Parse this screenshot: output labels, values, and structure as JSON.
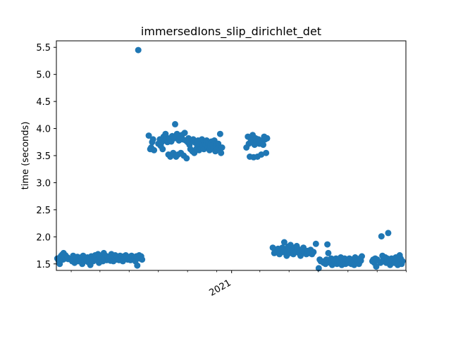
{
  "chart_data": {
    "type": "scatter",
    "title": "immersedIons_slip_dirichlet_det",
    "xlabel": "",
    "ylabel": "time (seconds)",
    "x_axis_kind": "date",
    "xlim": [
      "2020-01-01",
      "2021-12-31"
    ],
    "ylim": [
      1.38,
      5.62
    ],
    "yticks": [
      1.5,
      2.0,
      2.5,
      3.0,
      3.5,
      4.0,
      4.5,
      5.0,
      5.5
    ],
    "ytick_labels": [
      "1.5",
      "2.0",
      "2.5",
      "3.0",
      "3.5",
      "4.0",
      "4.5",
      "5.0",
      "5.5"
    ],
    "xtick_major": [
      {
        "date": "2021-01-01",
        "label": "2021"
      }
    ],
    "xtick_minor": [
      "2020-02-01",
      "2020-04-01",
      "2020-06-01",
      "2020-08-01",
      "2020-10-01",
      "2020-12-01",
      "2021-03-01",
      "2021-05-01",
      "2021-07-01",
      "2021-09-01",
      "2021-11-01",
      "2022-01-01"
    ],
    "grid": false,
    "legend": "none",
    "marker_color": "#1f77b4",
    "series": [
      {
        "x": [
          "2020-01-03",
          "2020-01-06",
          "2020-01-08",
          "2020-01-09",
          "2020-01-11",
          "2020-01-13",
          "2020-01-15",
          "2020-01-16",
          "2020-01-18",
          "2020-01-20",
          "2020-01-22",
          "2020-01-24",
          "2020-01-26",
          "2020-02-01",
          "2020-02-03",
          "2020-02-05",
          "2020-02-06",
          "2020-02-08",
          "2020-02-10",
          "2020-02-12",
          "2020-02-14",
          "2020-02-16",
          "2020-02-18",
          "2020-02-20",
          "2020-02-22",
          "2020-02-24",
          "2020-02-26",
          "2020-02-28",
          "2020-03-02",
          "2020-03-04",
          "2020-03-06",
          "2020-03-08",
          "2020-03-10",
          "2020-03-12",
          "2020-03-14",
          "2020-03-16",
          "2020-03-18",
          "2020-03-20",
          "2020-03-22",
          "2020-03-24",
          "2020-03-26",
          "2020-03-28",
          "2020-03-30",
          "2020-04-01",
          "2020-04-03",
          "2020-04-05",
          "2020-04-07",
          "2020-04-09",
          "2020-04-11",
          "2020-04-13",
          "2020-04-15",
          "2020-04-17",
          "2020-04-19",
          "2020-04-21",
          "2020-04-23",
          "2020-04-25",
          "2020-04-27",
          "2020-04-29",
          "2020-05-01",
          "2020-05-03",
          "2020-05-05",
          "2020-05-07",
          "2020-05-09",
          "2020-05-11",
          "2020-05-13",
          "2020-05-15",
          "2020-05-17",
          "2020-05-19",
          "2020-05-21",
          "2020-05-23",
          "2020-05-25",
          "2020-05-27",
          "2020-05-29",
          "2020-05-31",
          "2020-06-02",
          "2020-06-04",
          "2020-06-06",
          "2020-06-08",
          "2020-06-10",
          "2020-06-12",
          "2020-06-14",
          "2020-06-16",
          "2020-06-18",
          "2020-06-20",
          "2020-06-22",
          "2020-06-24",
          "2020-06-26",
          "2020-06-28"
        ],
        "y": [
          1.6,
          1.55,
          1.5,
          1.62,
          1.65,
          1.67,
          1.58,
          1.7,
          1.63,
          1.66,
          1.6,
          1.62,
          1.59,
          1.58,
          1.55,
          1.65,
          1.6,
          1.52,
          1.62,
          1.57,
          1.63,
          1.55,
          1.6,
          1.58,
          1.62,
          1.5,
          1.65,
          1.55,
          1.6,
          1.57,
          1.62,
          1.53,
          1.59,
          1.48,
          1.64,
          1.58,
          1.55,
          1.62,
          1.66,
          1.6,
          1.57,
          1.68,
          1.52,
          1.63,
          1.58,
          1.61,
          1.55,
          1.7,
          1.6,
          1.65,
          1.57,
          1.62,
          1.59,
          1.64,
          1.56,
          1.68,
          1.61,
          1.55,
          1.63,
          1.66,
          1.58,
          1.62,
          1.6,
          1.57,
          1.65,
          1.59,
          1.62,
          1.55,
          1.64,
          1.6,
          1.66,
          1.62,
          1.58,
          1.6,
          1.63,
          1.57,
          1.65,
          1.6,
          1.58,
          1.62,
          1.55,
          1.64,
          1.47,
          1.62,
          1.66,
          1.6,
          1.64,
          1.58
        ]
      },
      {
        "x": [
          "2020-06-20"
        ],
        "y": [
          5.45
        ]
      },
      {
        "x": [
          "2020-07-12",
          "2020-07-15",
          "2020-07-17",
          "2020-07-19",
          "2020-07-21",
          "2020-07-23",
          "2020-08-01",
          "2020-08-04",
          "2020-08-06",
          "2020-08-08",
          "2020-08-10",
          "2020-08-12",
          "2020-08-14",
          "2020-08-16",
          "2020-08-18",
          "2020-08-20",
          "2020-08-22",
          "2020-08-24",
          "2020-08-26",
          "2020-08-28",
          "2020-08-30",
          "2020-09-01",
          "2020-09-03",
          "2020-09-05",
          "2020-09-07",
          "2020-09-09",
          "2020-09-11",
          "2020-09-13",
          "2020-09-15",
          "2020-09-17",
          "2020-09-19",
          "2020-09-21",
          "2020-09-23",
          "2020-09-25",
          "2020-09-27",
          "2020-09-29",
          "2020-10-01",
          "2020-10-03",
          "2020-10-05",
          "2020-10-07",
          "2020-10-09",
          "2020-10-11",
          "2020-10-13",
          "2020-10-15",
          "2020-10-17",
          "2020-10-19",
          "2020-10-21",
          "2020-10-23",
          "2020-10-25",
          "2020-10-27",
          "2020-10-29",
          "2020-10-31",
          "2020-11-02",
          "2020-11-04",
          "2020-11-06",
          "2020-11-08",
          "2020-11-10",
          "2020-11-12",
          "2020-11-14",
          "2020-11-16",
          "2020-11-18",
          "2020-11-20",
          "2020-11-22",
          "2020-11-24",
          "2020-11-26",
          "2020-11-28",
          "2020-11-30",
          "2020-12-02",
          "2020-12-04",
          "2020-12-06"
        ],
        "y": [
          3.87,
          3.62,
          3.65,
          3.75,
          3.8,
          3.6,
          3.72,
          3.8,
          3.68,
          3.75,
          3.62,
          3.85,
          3.78,
          3.9,
          3.8,
          3.75,
          3.52,
          3.82,
          3.48,
          3.76,
          3.86,
          3.55,
          3.82,
          4.08,
          3.48,
          3.9,
          3.52,
          3.78,
          3.84,
          3.55,
          3.88,
          3.8,
          3.5,
          3.92,
          3.78,
          3.45,
          3.75,
          3.82,
          3.7,
          3.62,
          3.78,
          3.58,
          3.8,
          3.55,
          3.74,
          3.62,
          3.7,
          3.78,
          3.6,
          3.72,
          3.65,
          3.8,
          3.68,
          3.62,
          3.75,
          3.7,
          3.78,
          3.65,
          3.72,
          3.6,
          3.68,
          3.76,
          3.7,
          3.64,
          3.78,
          3.58,
          3.7,
          3.62,
          3.72,
          3.65
        ]
      },
      {
        "x": [
          "2020-12-08",
          "2020-12-10",
          "2020-12-12"
        ],
        "y": [
          3.9,
          3.55,
          3.65
        ]
      },
      {
        "x": [
          "2021-02-01",
          "2021-02-04",
          "2021-02-06",
          "2021-02-08",
          "2021-02-10",
          "2021-02-12",
          "2021-02-14",
          "2021-02-16",
          "2021-02-18",
          "2021-02-20",
          "2021-02-22",
          "2021-02-24",
          "2021-02-26",
          "2021-02-28",
          "2021-03-02",
          "2021-03-04",
          "2021-03-06",
          "2021-03-08",
          "2021-03-10",
          "2021-03-12",
          "2021-03-14",
          "2021-03-16"
        ],
        "y": [
          3.65,
          3.85,
          3.72,
          3.48,
          3.8,
          3.75,
          3.88,
          3.47,
          3.7,
          3.82,
          3.76,
          3.48,
          3.8,
          3.72,
          3.78,
          3.52,
          3.75,
          3.7,
          3.85,
          3.8,
          3.55,
          3.82
        ]
      },
      {
        "x": [
          "2021-03-28",
          "2021-03-31",
          "2021-04-02",
          "2021-04-05",
          "2021-04-08",
          "2021-04-11",
          "2021-04-14",
          "2021-04-17",
          "2021-04-19",
          "2021-04-21",
          "2021-04-24",
          "2021-04-26",
          "2021-04-29",
          "2021-05-02",
          "2021-05-04",
          "2021-05-07",
          "2021-05-10",
          "2021-05-12",
          "2021-05-15",
          "2021-05-17",
          "2021-05-19",
          "2021-05-22",
          "2021-05-25",
          "2021-05-28",
          "2021-05-31",
          "2021-06-03",
          "2021-06-06",
          "2021-06-09",
          "2021-06-12",
          "2021-06-15",
          "2021-06-18",
          "2021-06-21",
          "2021-06-26"
        ],
        "y": [
          1.8,
          1.7,
          1.76,
          1.72,
          1.78,
          1.68,
          1.75,
          1.8,
          1.72,
          1.9,
          1.76,
          1.65,
          1.82,
          1.7,
          1.85,
          1.75,
          1.68,
          1.8,
          1.72,
          1.83,
          1.78,
          1.7,
          1.65,
          1.76,
          1.8,
          1.72,
          1.68,
          1.74,
          1.7,
          1.76,
          1.68,
          1.72,
          1.87
        ]
      },
      {
        "x": [
          "2021-07-02",
          "2021-07-04",
          "2021-07-06",
          "2021-07-12",
          "2021-07-14",
          "2021-07-16",
          "2021-07-18",
          "2021-07-20",
          "2021-07-22",
          "2021-07-24",
          "2021-07-26",
          "2021-07-28",
          "2021-07-30",
          "2021-08-01",
          "2021-08-03",
          "2021-08-05",
          "2021-08-07",
          "2021-08-09",
          "2021-08-11",
          "2021-08-13",
          "2021-08-15",
          "2021-08-17",
          "2021-08-19",
          "2021-08-21",
          "2021-08-23",
          "2021-08-25",
          "2021-08-27",
          "2021-08-29",
          "2021-08-31",
          "2021-09-02",
          "2021-09-04",
          "2021-09-06",
          "2021-09-08",
          "2021-09-10",
          "2021-09-12",
          "2021-09-14",
          "2021-09-16",
          "2021-09-18",
          "2021-09-20",
          "2021-09-22",
          "2021-09-24",
          "2021-09-26",
          "2021-09-28",
          "2021-09-30"
        ],
        "y": [
          1.42,
          1.58,
          1.55,
          1.52,
          1.55,
          1.5,
          1.58,
          1.86,
          1.7,
          1.55,
          1.52,
          1.6,
          1.48,
          1.55,
          1.57,
          1.52,
          1.6,
          1.5,
          1.55,
          1.58,
          1.52,
          1.62,
          1.48,
          1.57,
          1.54,
          1.6,
          1.5,
          1.58,
          1.55,
          1.52,
          1.6,
          1.56,
          1.5,
          1.58,
          1.54,
          1.48,
          1.62,
          1.52,
          1.57,
          1.55,
          1.5,
          1.6,
          1.56,
          1.64
        ]
      },
      {
        "x": [
          "2021-10-22",
          "2021-10-24",
          "2021-10-26",
          "2021-10-28",
          "2021-10-30",
          "2021-11-01",
          "2021-11-08",
          "2021-11-10",
          "2021-11-12",
          "2021-11-14",
          "2021-11-16",
          "2021-11-18",
          "2021-11-20",
          "2021-11-22",
          "2021-11-24",
          "2021-11-26",
          "2021-11-28",
          "2021-12-01",
          "2021-12-04",
          "2021-12-07",
          "2021-12-10",
          "2021-12-12",
          "2021-12-14",
          "2021-12-16",
          "2021-12-18",
          "2021-12-20",
          "2021-12-22",
          "2021-12-24"
        ],
        "y": [
          1.55,
          1.58,
          1.52,
          1.6,
          1.45,
          1.58,
          1.52,
          2.01,
          1.65,
          1.58,
          1.55,
          1.62,
          1.52,
          1.6,
          2.07,
          1.55,
          1.48,
          1.6,
          1.55,
          1.52,
          1.62,
          1.58,
          1.48,
          1.55,
          1.66,
          1.6,
          1.5,
          1.55
        ]
      }
    ]
  }
}
